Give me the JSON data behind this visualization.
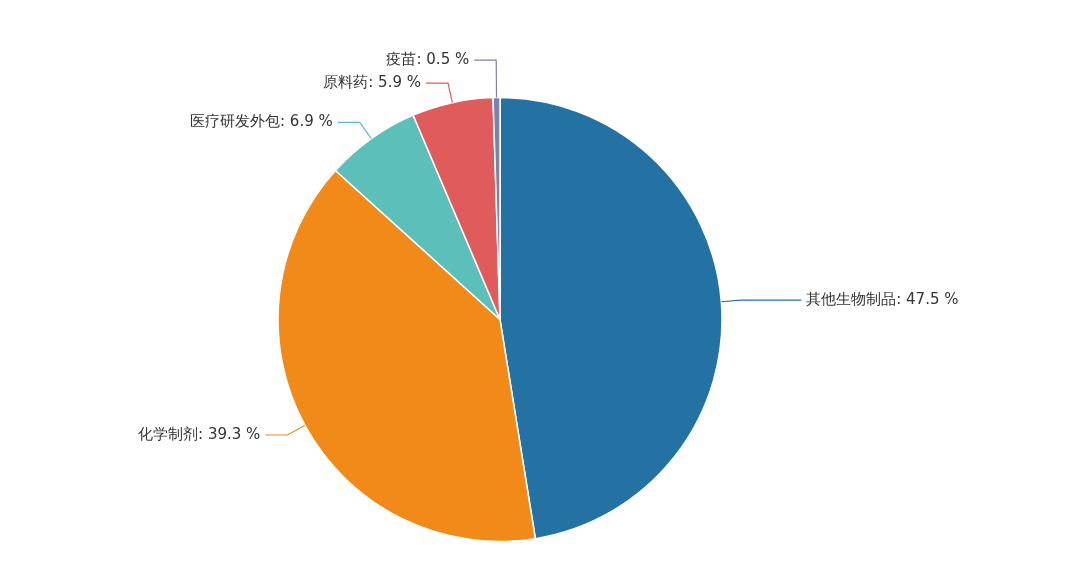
{
  "chart_data": {
    "type": "pie",
    "categories": [
      "其他生物制品",
      "化学制剂",
      "医疗研发外包",
      "原料药",
      "疫苗"
    ],
    "values": [
      47.5,
      39.3,
      6.9,
      5.9,
      0.5
    ],
    "value_labels": [
      "47.5 %",
      "39.3 %",
      "6.9 %",
      "5.9 %",
      "0.5 %"
    ],
    "colors": [
      "#2471a3",
      "#f28a1a",
      "#5cbfb9",
      "#e05b5b",
      "#7c80aa"
    ],
    "legend": false
  }
}
